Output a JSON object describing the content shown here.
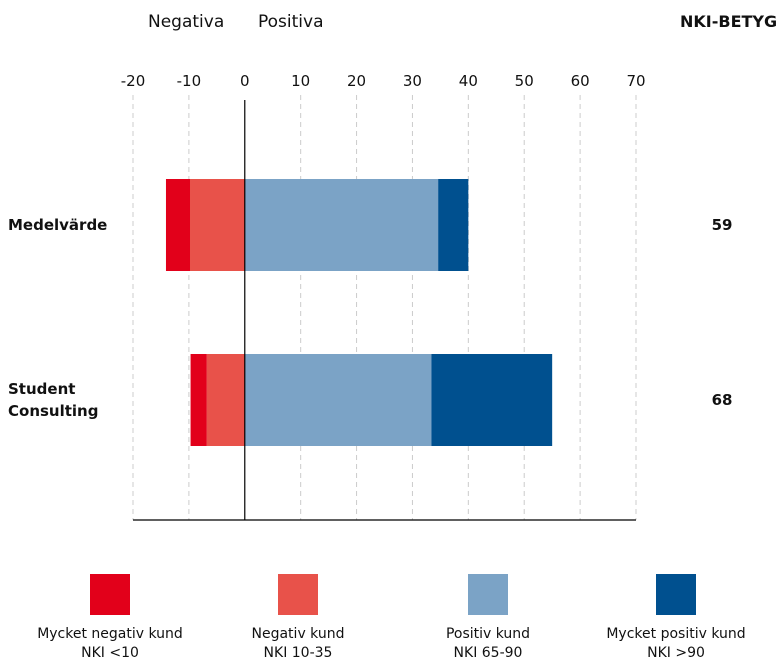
{
  "chart_data": {
    "type": "bar",
    "orientation": "horizontal",
    "axis_labels": {
      "negative": "Negativa",
      "positive": "Positiva"
    },
    "categories": [
      "Medelvärde",
      "Student Consulting"
    ],
    "series": [
      {
        "name": "Mycket negativ kund",
        "range": "NKI <10",
        "color": "#e2001a",
        "values": [
          -4.3,
          -2.9
        ]
      },
      {
        "name": "Negativ kund",
        "range": "NKI 10-35",
        "color": "#e8524a",
        "values": [
          -9.8,
          -6.8
        ]
      },
      {
        "name": "Positiv kund",
        "range": "NKI 65-90",
        "color": "#7ba3c6",
        "values": [
          34.6,
          33.4
        ]
      },
      {
        "name": "Mycket positiv kund",
        "range": "NKI >90",
        "color": "#00508f",
        "values": [
          5.4,
          21.6
        ]
      }
    ],
    "score": {
      "label": "NKI-BETYG",
      "values": [
        59,
        68
      ]
    },
    "xlim": [
      -20,
      70
    ],
    "xticks": [
      -20,
      -10,
      0,
      10,
      20,
      30,
      40,
      50,
      60,
      70
    ],
    "grid": true
  }
}
